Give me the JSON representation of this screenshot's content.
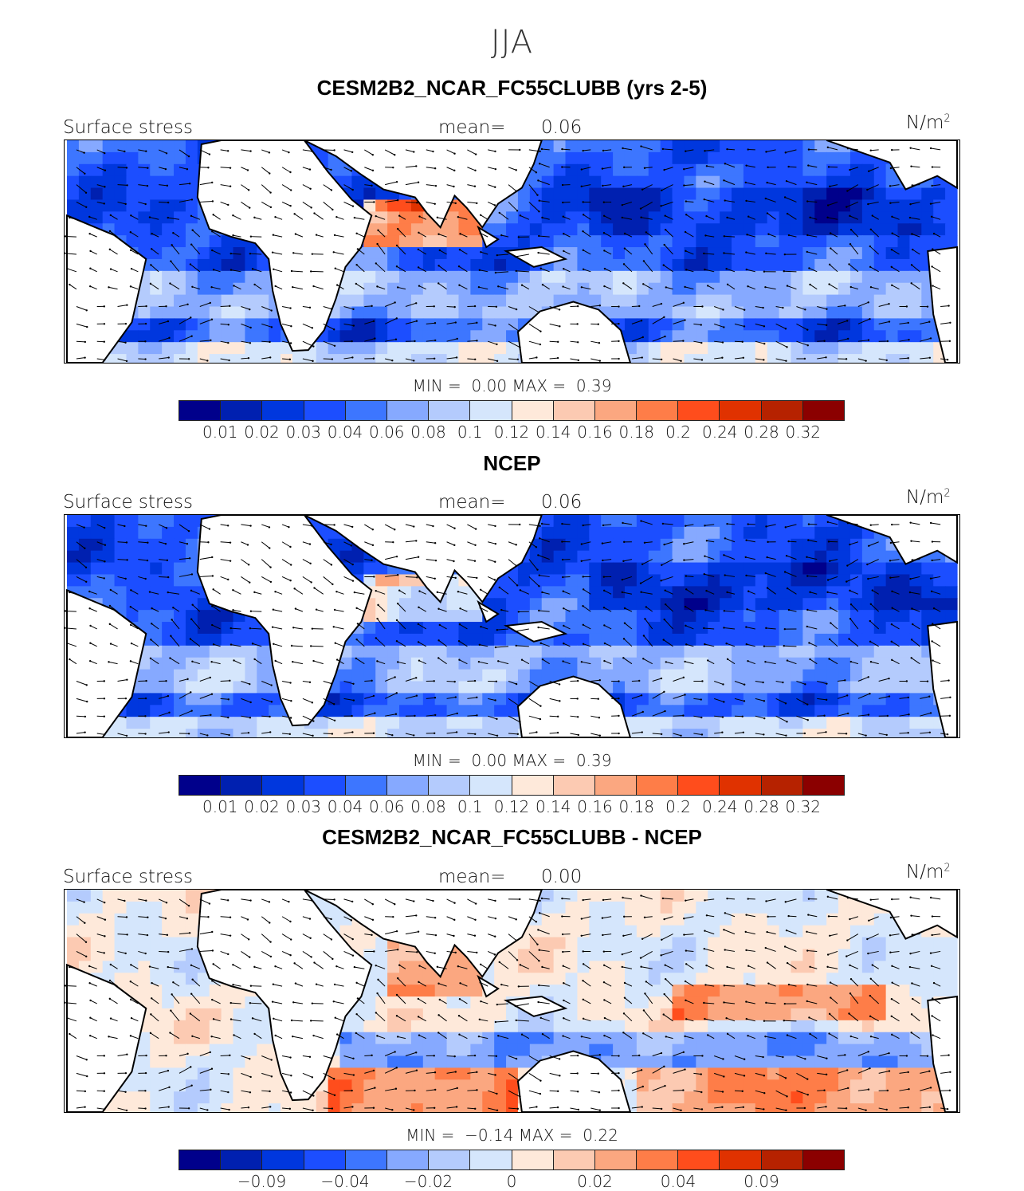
{
  "suptitle": "JJA",
  "colors": [
    "#00008b",
    "#0020b0",
    "#0037de",
    "#1c4eff",
    "#3d76ff",
    "#86a9ff",
    "#b4cbfd",
    "#d5e6fc",
    "#fee9da",
    "#fccab2",
    "#fba780",
    "#fe7d48",
    "#ff4d1c",
    "#e03200",
    "#b62200",
    "#8b0000"
  ],
  "panels": [
    {
      "title": "CESM2B2_NCAR_FC55CLUBB (yrs 2-5)",
      "variable": "Surface stress",
      "mean_label": "mean=",
      "mean": "0.06",
      "units": "N/m",
      "units_sup": "2",
      "min_label": "MIN =",
      "min": "0.00",
      "max_label": "MAX =",
      "max": "0.39",
      "ticks": [
        "0.01",
        "0.02",
        "0.03",
        "0.04",
        "0.06",
        "0.08",
        "0.1",
        "0.12",
        "0.14",
        "0.16",
        "0.18",
        "0.2",
        "0.24",
        "0.28",
        "0.32"
      ],
      "tick_boundaries": [
        1,
        2,
        3,
        4,
        5,
        6,
        7,
        8,
        9,
        10,
        11,
        12,
        13,
        14,
        15
      ],
      "field": "model"
    },
    {
      "title": "NCEP",
      "variable": "Surface stress",
      "mean_label": "mean=",
      "mean": "0.06",
      "units": "N/m",
      "units_sup": "2",
      "min_label": "MIN =",
      "min": "0.00",
      "max_label": "MAX =",
      "max": "0.39",
      "ticks": [
        "0.01",
        "0.02",
        "0.03",
        "0.04",
        "0.06",
        "0.08",
        "0.1",
        "0.12",
        "0.14",
        "0.16",
        "0.18",
        "0.2",
        "0.24",
        "0.28",
        "0.32"
      ],
      "tick_boundaries": [
        1,
        2,
        3,
        4,
        5,
        6,
        7,
        8,
        9,
        10,
        11,
        12,
        13,
        14,
        15
      ],
      "field": "obs"
    },
    {
      "title": "CESM2B2_NCAR_FC55CLUBB - NCEP",
      "variable": "Surface stress",
      "mean_label": "mean=",
      "mean": "0.00",
      "units": "N/m",
      "units_sup": "2",
      "min_label": "MIN =",
      "min": "−0.14",
      "max_label": "MAX =",
      "max": "0.22",
      "ticks": [
        "−0.09",
        "−0.04",
        "−0.02",
        "0",
        "0.02",
        "0.04",
        "0.09"
      ],
      "tick_boundaries": [
        2,
        4,
        6,
        8,
        10,
        12,
        14
      ],
      "field": "diff"
    }
  ]
}
